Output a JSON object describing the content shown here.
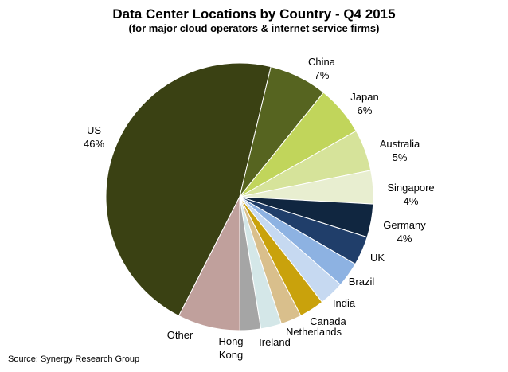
{
  "chart_data": {
    "type": "pie",
    "title": "Data Center Locations by Country - Q4 2015",
    "subtitle": "(for major cloud operators & internet service firms)",
    "source": "Source: Synergy Research Group",
    "slices": [
      {
        "name": "US",
        "value": 46,
        "value_label": "46%",
        "color": "#3a4113"
      },
      {
        "name": "China",
        "value": 7,
        "value_label": "7%",
        "color": "#566420"
      },
      {
        "name": "Japan",
        "value": 6,
        "value_label": "6%",
        "color": "#c1d55b"
      },
      {
        "name": "Australia",
        "value": 5,
        "value_label": "5%",
        "color": "#d6e39a"
      },
      {
        "name": "Singapore",
        "value": 4,
        "value_label": "4%",
        "color": "#e8eed0"
      },
      {
        "name": "Germany",
        "value": 4,
        "value_label": "4%",
        "color": "#102640"
      },
      {
        "name": "UK",
        "value": 3.5,
        "value_label": "",
        "color": "#203e6a"
      },
      {
        "name": "Brazil",
        "value": 3,
        "value_label": "",
        "color": "#8db2e2"
      },
      {
        "name": "India",
        "value": 3,
        "value_label": "",
        "color": "#c6d9f1"
      },
      {
        "name": "Canada",
        "value": 3,
        "value_label": "",
        "color": "#c9a20c"
      },
      {
        "name": "Netherlands",
        "value": 2.5,
        "value_label": "",
        "color": "#d9bf8c"
      },
      {
        "name": "Ireland",
        "value": 2.5,
        "value_label": "",
        "color": "#d4e7e8"
      },
      {
        "name": "Hong Kong",
        "value": 2.5,
        "value_label": "",
        "color": "#a5a5a5"
      },
      {
        "name": "Other",
        "value": 7.5,
        "value_label": "",
        "color": "#c0a09c"
      }
    ]
  }
}
